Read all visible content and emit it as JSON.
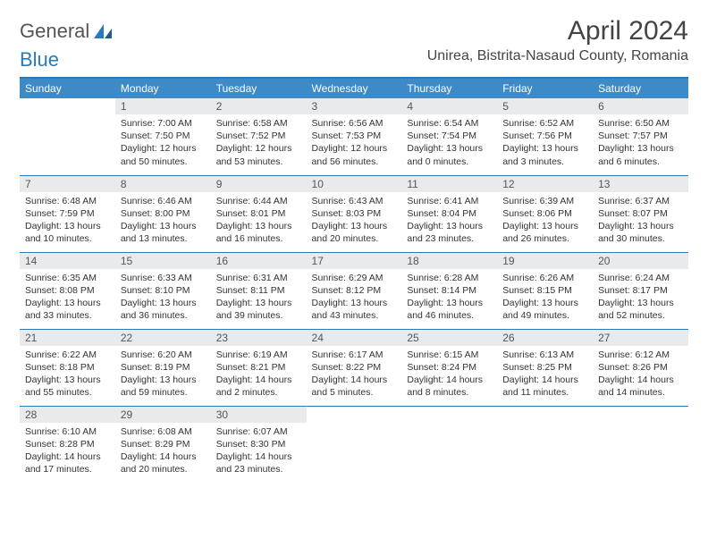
{
  "brand": {
    "name_a": "General",
    "name_b": "Blue"
  },
  "title": "April 2024",
  "location": "Unirea, Bistrita-Nasaud County, Romania",
  "colors": {
    "header_bg": "#3e8ac7",
    "accent_border": "#2a7ab9",
    "daynum_bg": "#e9eaeb",
    "text": "#333333"
  },
  "day_headers": [
    "Sunday",
    "Monday",
    "Tuesday",
    "Wednesday",
    "Thursday",
    "Friday",
    "Saturday"
  ],
  "weeks": [
    [
      {
        "n": "",
        "empty": true
      },
      {
        "n": "1",
        "sunrise": "Sunrise: 7:00 AM",
        "sunset": "Sunset: 7:50 PM",
        "daylight": "Daylight: 12 hours and 50 minutes."
      },
      {
        "n": "2",
        "sunrise": "Sunrise: 6:58 AM",
        "sunset": "Sunset: 7:52 PM",
        "daylight": "Daylight: 12 hours and 53 minutes."
      },
      {
        "n": "3",
        "sunrise": "Sunrise: 6:56 AM",
        "sunset": "Sunset: 7:53 PM",
        "daylight": "Daylight: 12 hours and 56 minutes."
      },
      {
        "n": "4",
        "sunrise": "Sunrise: 6:54 AM",
        "sunset": "Sunset: 7:54 PM",
        "daylight": "Daylight: 13 hours and 0 minutes."
      },
      {
        "n": "5",
        "sunrise": "Sunrise: 6:52 AM",
        "sunset": "Sunset: 7:56 PM",
        "daylight": "Daylight: 13 hours and 3 minutes."
      },
      {
        "n": "6",
        "sunrise": "Sunrise: 6:50 AM",
        "sunset": "Sunset: 7:57 PM",
        "daylight": "Daylight: 13 hours and 6 minutes."
      }
    ],
    [
      {
        "n": "7",
        "sunrise": "Sunrise: 6:48 AM",
        "sunset": "Sunset: 7:59 PM",
        "daylight": "Daylight: 13 hours and 10 minutes."
      },
      {
        "n": "8",
        "sunrise": "Sunrise: 6:46 AM",
        "sunset": "Sunset: 8:00 PM",
        "daylight": "Daylight: 13 hours and 13 minutes."
      },
      {
        "n": "9",
        "sunrise": "Sunrise: 6:44 AM",
        "sunset": "Sunset: 8:01 PM",
        "daylight": "Daylight: 13 hours and 16 minutes."
      },
      {
        "n": "10",
        "sunrise": "Sunrise: 6:43 AM",
        "sunset": "Sunset: 8:03 PM",
        "daylight": "Daylight: 13 hours and 20 minutes."
      },
      {
        "n": "11",
        "sunrise": "Sunrise: 6:41 AM",
        "sunset": "Sunset: 8:04 PM",
        "daylight": "Daylight: 13 hours and 23 minutes."
      },
      {
        "n": "12",
        "sunrise": "Sunrise: 6:39 AM",
        "sunset": "Sunset: 8:06 PM",
        "daylight": "Daylight: 13 hours and 26 minutes."
      },
      {
        "n": "13",
        "sunrise": "Sunrise: 6:37 AM",
        "sunset": "Sunset: 8:07 PM",
        "daylight": "Daylight: 13 hours and 30 minutes."
      }
    ],
    [
      {
        "n": "14",
        "sunrise": "Sunrise: 6:35 AM",
        "sunset": "Sunset: 8:08 PM",
        "daylight": "Daylight: 13 hours and 33 minutes."
      },
      {
        "n": "15",
        "sunrise": "Sunrise: 6:33 AM",
        "sunset": "Sunset: 8:10 PM",
        "daylight": "Daylight: 13 hours and 36 minutes."
      },
      {
        "n": "16",
        "sunrise": "Sunrise: 6:31 AM",
        "sunset": "Sunset: 8:11 PM",
        "daylight": "Daylight: 13 hours and 39 minutes."
      },
      {
        "n": "17",
        "sunrise": "Sunrise: 6:29 AM",
        "sunset": "Sunset: 8:12 PM",
        "daylight": "Daylight: 13 hours and 43 minutes."
      },
      {
        "n": "18",
        "sunrise": "Sunrise: 6:28 AM",
        "sunset": "Sunset: 8:14 PM",
        "daylight": "Daylight: 13 hours and 46 minutes."
      },
      {
        "n": "19",
        "sunrise": "Sunrise: 6:26 AM",
        "sunset": "Sunset: 8:15 PM",
        "daylight": "Daylight: 13 hours and 49 minutes."
      },
      {
        "n": "20",
        "sunrise": "Sunrise: 6:24 AM",
        "sunset": "Sunset: 8:17 PM",
        "daylight": "Daylight: 13 hours and 52 minutes."
      }
    ],
    [
      {
        "n": "21",
        "sunrise": "Sunrise: 6:22 AM",
        "sunset": "Sunset: 8:18 PM",
        "daylight": "Daylight: 13 hours and 55 minutes."
      },
      {
        "n": "22",
        "sunrise": "Sunrise: 6:20 AM",
        "sunset": "Sunset: 8:19 PM",
        "daylight": "Daylight: 13 hours and 59 minutes."
      },
      {
        "n": "23",
        "sunrise": "Sunrise: 6:19 AM",
        "sunset": "Sunset: 8:21 PM",
        "daylight": "Daylight: 14 hours and 2 minutes."
      },
      {
        "n": "24",
        "sunrise": "Sunrise: 6:17 AM",
        "sunset": "Sunset: 8:22 PM",
        "daylight": "Daylight: 14 hours and 5 minutes."
      },
      {
        "n": "25",
        "sunrise": "Sunrise: 6:15 AM",
        "sunset": "Sunset: 8:24 PM",
        "daylight": "Daylight: 14 hours and 8 minutes."
      },
      {
        "n": "26",
        "sunrise": "Sunrise: 6:13 AM",
        "sunset": "Sunset: 8:25 PM",
        "daylight": "Daylight: 14 hours and 11 minutes."
      },
      {
        "n": "27",
        "sunrise": "Sunrise: 6:12 AM",
        "sunset": "Sunset: 8:26 PM",
        "daylight": "Daylight: 14 hours and 14 minutes."
      }
    ],
    [
      {
        "n": "28",
        "sunrise": "Sunrise: 6:10 AM",
        "sunset": "Sunset: 8:28 PM",
        "daylight": "Daylight: 14 hours and 17 minutes."
      },
      {
        "n": "29",
        "sunrise": "Sunrise: 6:08 AM",
        "sunset": "Sunset: 8:29 PM",
        "daylight": "Daylight: 14 hours and 20 minutes."
      },
      {
        "n": "30",
        "sunrise": "Sunrise: 6:07 AM",
        "sunset": "Sunset: 8:30 PM",
        "daylight": "Daylight: 14 hours and 23 minutes."
      },
      {
        "n": "",
        "empty": true
      },
      {
        "n": "",
        "empty": true
      },
      {
        "n": "",
        "empty": true
      },
      {
        "n": "",
        "empty": true
      }
    ]
  ]
}
